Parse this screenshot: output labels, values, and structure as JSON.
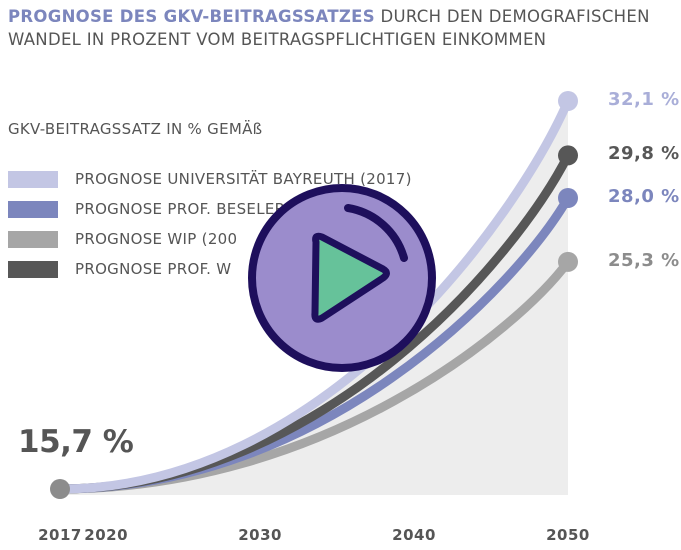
{
  "title": {
    "highlight": "PROGNOSE DES GKV-BEITRAGSSATZES",
    "rest": "DURCH DEN DEMOGRAFISCHEN WANDEL IN PROZENT VOM BEITRAGSPFLICHTIGEN EINKOMMEN"
  },
  "legend_heading": "GKV-BEITRAGSSATZ IN % GEMÄß",
  "start_label": "15,7 %",
  "media": {
    "play_icon": "play-button-icon",
    "ring_color": "#1e0f5c",
    "fill_color": "#9b8ccc",
    "triangle_color": "#66c29a"
  },
  "chart_data": {
    "type": "line",
    "x": [
      2017,
      2050
    ],
    "xticks": [
      "2017",
      "2020",
      "2030",
      "2040",
      "2050"
    ],
    "xlim": [
      2017,
      2050
    ],
    "ylim": [
      15.7,
      32.1
    ],
    "start_value": 15.7,
    "series": [
      {
        "name": "PROGNOSE UNIVERSITÄT BAYREUTH (2017)",
        "values": [
          15.7,
          32.1
        ],
        "end_label": "32,1 %",
        "color": "#c3c6e4"
      },
      {
        "name": "PROGNOSE PROF. BESELER",
        "values": [
          15.7,
          28.0
        ],
        "end_label": "28,0 %",
        "color": "#7c86bd"
      },
      {
        "name": "PROGNOSE WIP (200",
        "values": [
          15.7,
          25.3
        ],
        "end_label": "25,3 %",
        "color": "#a6a6a6"
      },
      {
        "name": "PROGNOSE PROF. W",
        "values": [
          15.7,
          29.8
        ],
        "end_label": "29,8 %",
        "color": "#575757"
      }
    ],
    "legend_order": [
      0,
      1,
      2,
      3
    ],
    "grid": false,
    "legend_position": "left"
  }
}
